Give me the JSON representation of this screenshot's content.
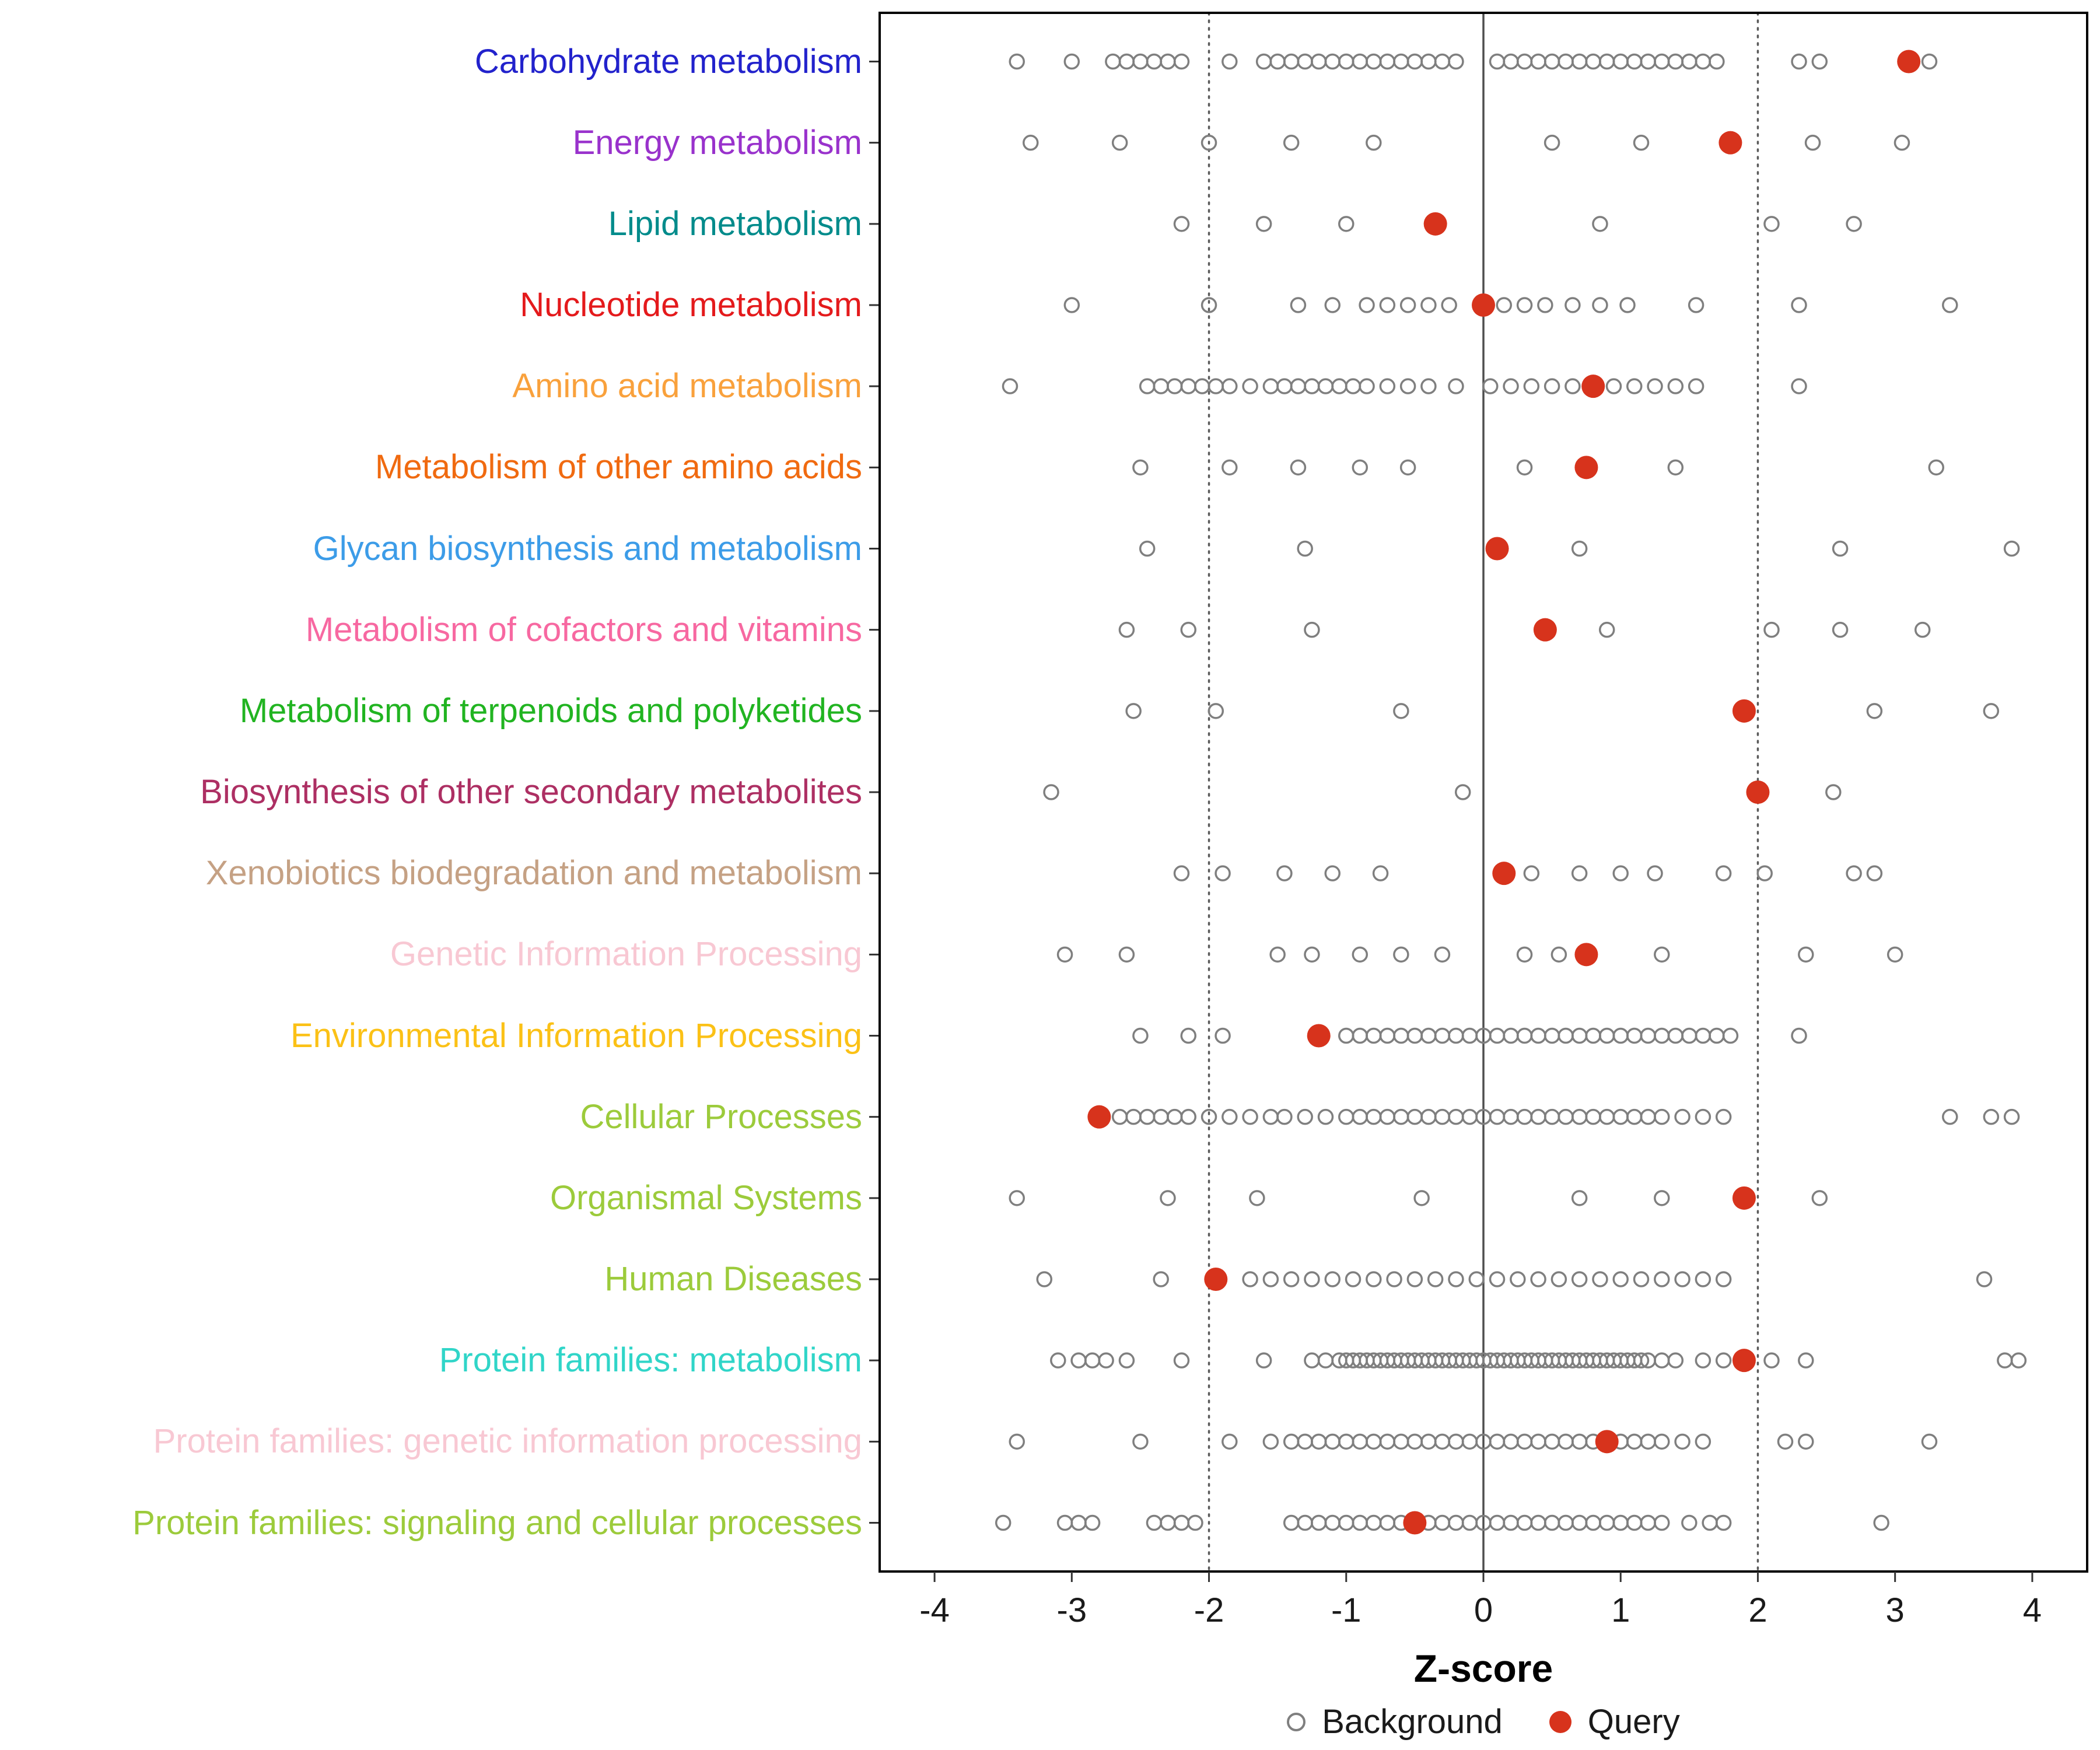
{
  "chart_data": {
    "type": "scatter",
    "title": "",
    "xlabel": "Z-score",
    "x_ticks": [
      -4,
      -3,
      -2,
      -1,
      0,
      1,
      2,
      3,
      4
    ],
    "xlim": [
      -4.4,
      4.4
    ],
    "grid": false,
    "reference_lines": {
      "solid": [
        0
      ],
      "dotted": [
        -2,
        2
      ]
    },
    "legend_position": "bottom",
    "background_color": "#7f7f7f",
    "query_color": "#d7331c",
    "legend": [
      {
        "label": "Background",
        "marker": "open-circle",
        "color": "#7f7f7f"
      },
      {
        "label": "Query",
        "marker": "filled-circle",
        "color": "#d7331c"
      }
    ],
    "categories": [
      {
        "label": "Carbohydrate metabolism",
        "color": "#2222cc",
        "query": 3.1,
        "background": [
          -3.4,
          -3.0,
          -2.7,
          -2.6,
          -2.5,
          -2.4,
          -2.3,
          -2.2,
          -1.85,
          -1.6,
          -1.5,
          -1.4,
          -1.3,
          -1.2,
          -1.1,
          -1.0,
          -0.9,
          -0.8,
          -0.7,
          -0.6,
          -0.5,
          -0.4,
          -0.3,
          -0.2,
          0.1,
          0.2,
          0.3,
          0.4,
          0.5,
          0.6,
          0.7,
          0.8,
          0.9,
          1.0,
          1.1,
          1.2,
          1.3,
          1.4,
          1.5,
          1.6,
          1.7,
          2.3,
          2.45,
          3.25
        ]
      },
      {
        "label": "Energy metabolism",
        "color": "#9932cc",
        "query": 1.8,
        "background": [
          -3.3,
          -2.65,
          -2.0,
          -1.4,
          -0.8,
          0.5,
          1.15,
          2.4,
          3.05
        ]
      },
      {
        "label": "Lipid metabolism",
        "color": "#008b8b",
        "query": -0.35,
        "background": [
          -2.2,
          -1.6,
          -1.0,
          0.85,
          2.1,
          2.7
        ]
      },
      {
        "label": "Nucleotide metabolism",
        "color": "#e41a1c",
        "query": 0.0,
        "background": [
          -3.0,
          -2.0,
          -1.35,
          -1.1,
          -0.85,
          -0.7,
          -0.55,
          -0.4,
          -0.25,
          0.15,
          0.3,
          0.45,
          0.65,
          0.85,
          1.05,
          1.55,
          2.3,
          3.4
        ]
      },
      {
        "label": "Amino acid metabolism",
        "color": "#f9a13c",
        "query": 0.8,
        "background": [
          -3.45,
          -2.45,
          -2.35,
          -2.25,
          -2.15,
          -2.05,
          -1.95,
          -1.85,
          -1.7,
          -1.55,
          -1.45,
          -1.35,
          -1.25,
          -1.15,
          -1.05,
          -0.95,
          -0.85,
          -0.7,
          -0.55,
          -0.4,
          -0.2,
          0.05,
          0.2,
          0.35,
          0.5,
          0.65,
          0.95,
          1.1,
          1.25,
          1.4,
          1.55,
          2.3
        ]
      },
      {
        "label": "Metabolism of other amino acids",
        "color": "#f06a10",
        "query": 0.75,
        "background": [
          -2.5,
          -1.85,
          -1.35,
          -0.9,
          -0.55,
          0.3,
          1.4,
          3.3
        ]
      },
      {
        "label": "Glycan biosynthesis and metabolism",
        "color": "#3c9ce8",
        "query": 0.1,
        "background": [
          -2.45,
          -1.3,
          0.7,
          2.6,
          3.85
        ]
      },
      {
        "label": "Metabolism of cofactors and vitamins",
        "color": "#f768a1",
        "query": 0.45,
        "background": [
          -2.6,
          -2.15,
          -1.25,
          0.9,
          2.1,
          2.6,
          3.2
        ]
      },
      {
        "label": "Metabolism of terpenoids and polyketides",
        "color": "#21b421",
        "query": 1.9,
        "background": [
          -2.55,
          -1.95,
          -0.6,
          2.85,
          3.7
        ]
      },
      {
        "label": "Biosynthesis of other secondary metabolites",
        "color": "#ad2f63",
        "query": 2.0,
        "background": [
          -3.15,
          -0.15,
          2.55
        ]
      },
      {
        "label": "Xenobiotics biodegradation and metabolism",
        "color": "#c5a184",
        "query": 0.15,
        "background": [
          -2.2,
          -1.9,
          -1.45,
          -1.1,
          -0.75,
          0.35,
          0.7,
          1.0,
          1.25,
          1.75,
          2.05,
          2.7,
          2.85
        ]
      },
      {
        "label": "Genetic Information Processing",
        "color": "#f8c8d3",
        "query": 0.75,
        "background": [
          -3.05,
          -2.6,
          -1.5,
          -1.25,
          -0.9,
          -0.6,
          -0.3,
          0.3,
          0.55,
          1.3,
          2.35,
          3.0
        ]
      },
      {
        "label": "Environmental Information Processing",
        "color": "#fbc116",
        "query": -1.2,
        "background": [
          -2.5,
          -2.15,
          -1.9,
          -1.0,
          -0.9,
          -0.8,
          -0.7,
          -0.6,
          -0.5,
          -0.4,
          -0.3,
          -0.2,
          -0.1,
          0.0,
          0.1,
          0.2,
          0.3,
          0.4,
          0.5,
          0.6,
          0.7,
          0.8,
          0.9,
          1.0,
          1.1,
          1.2,
          1.3,
          1.4,
          1.5,
          1.6,
          1.7,
          1.8,
          2.3
        ]
      },
      {
        "label": "Cellular Processes",
        "color": "#9ccb3b",
        "query": -2.8,
        "background": [
          -2.65,
          -2.55,
          -2.45,
          -2.35,
          -2.25,
          -2.15,
          -2.0,
          -1.85,
          -1.7,
          -1.55,
          -1.45,
          -1.3,
          -1.15,
          -1.0,
          -0.9,
          -0.8,
          -0.7,
          -0.6,
          -0.5,
          -0.4,
          -0.3,
          -0.2,
          -0.1,
          0.0,
          0.1,
          0.2,
          0.3,
          0.4,
          0.5,
          0.6,
          0.7,
          0.8,
          0.9,
          1.0,
          1.1,
          1.2,
          1.3,
          1.45,
          1.6,
          1.75,
          3.4,
          3.7,
          3.85
        ]
      },
      {
        "label": "Organismal Systems",
        "color": "#9ccb3b",
        "query": 1.9,
        "background": [
          -3.4,
          -2.3,
          -1.65,
          -0.45,
          0.7,
          1.3,
          2.45
        ]
      },
      {
        "label": "Human Diseases",
        "color": "#9ccb3b",
        "query": -1.95,
        "background": [
          -3.2,
          -2.35,
          -1.7,
          -1.55,
          -1.4,
          -1.25,
          -1.1,
          -0.95,
          -0.8,
          -0.65,
          -0.5,
          -0.35,
          -0.2,
          -0.05,
          0.1,
          0.25,
          0.4,
          0.55,
          0.7,
          0.85,
          1.0,
          1.15,
          1.3,
          1.45,
          1.6,
          1.75,
          3.65
        ]
      },
      {
        "label": "Protein families: metabolism",
        "color": "#30d5c8",
        "query": 1.9,
        "background": [
          -3.1,
          -2.95,
          -2.85,
          -2.75,
          -2.6,
          -2.2,
          -1.6,
          -1.25,
          -1.15,
          -1.05,
          -1.0,
          -0.95,
          -0.9,
          -0.85,
          -0.8,
          -0.75,
          -0.7,
          -0.65,
          -0.6,
          -0.55,
          -0.5,
          -0.45,
          -0.4,
          -0.35,
          -0.3,
          -0.25,
          -0.2,
          -0.15,
          -0.1,
          -0.05,
          0.0,
          0.05,
          0.1,
          0.15,
          0.2,
          0.25,
          0.3,
          0.35,
          0.4,
          0.45,
          0.5,
          0.55,
          0.6,
          0.65,
          0.7,
          0.75,
          0.8,
          0.85,
          0.9,
          0.95,
          1.0,
          1.05,
          1.1,
          1.15,
          1.2,
          1.3,
          1.4,
          1.6,
          1.75,
          2.1,
          2.35,
          3.8,
          3.9
        ]
      },
      {
        "label": "Protein families: genetic information processing",
        "color": "#f8c8d3",
        "query": 0.9,
        "background": [
          -3.4,
          -2.5,
          -1.85,
          -1.55,
          -1.4,
          -1.3,
          -1.2,
          -1.1,
          -1.0,
          -0.9,
          -0.8,
          -0.7,
          -0.6,
          -0.5,
          -0.4,
          -0.3,
          -0.2,
          -0.1,
          0.0,
          0.1,
          0.2,
          0.3,
          0.4,
          0.5,
          0.6,
          0.7,
          0.8,
          1.0,
          1.1,
          1.2,
          1.3,
          1.45,
          1.6,
          2.2,
          2.35,
          3.25
        ]
      },
      {
        "label": "Protein families: signaling and cellular processes",
        "color": "#9ccb3b",
        "query": -0.5,
        "background": [
          -3.5,
          -3.05,
          -2.95,
          -2.85,
          -2.4,
          -2.3,
          -2.2,
          -2.1,
          -1.4,
          -1.3,
          -1.2,
          -1.1,
          -1.0,
          -0.9,
          -0.8,
          -0.7,
          -0.6,
          -0.5,
          -0.4,
          -0.3,
          -0.2,
          -0.1,
          0.0,
          0.1,
          0.2,
          0.3,
          0.4,
          0.5,
          0.6,
          0.7,
          0.8,
          0.9,
          1.0,
          1.1,
          1.2,
          1.3,
          1.5,
          1.65,
          1.75,
          2.9
        ]
      }
    ]
  }
}
